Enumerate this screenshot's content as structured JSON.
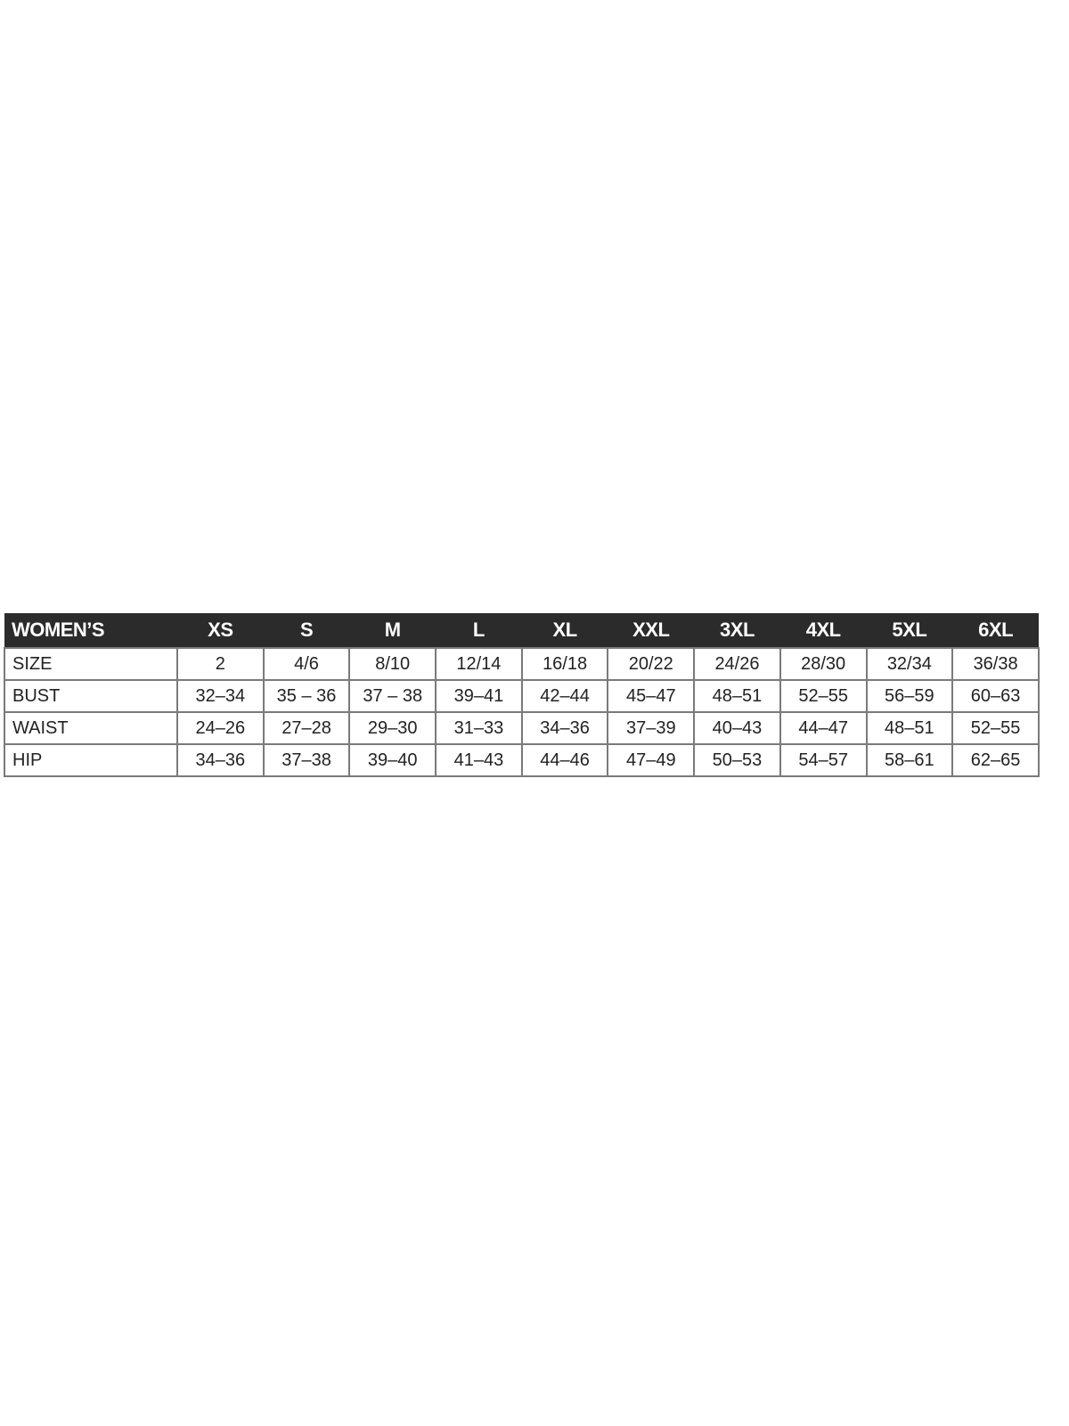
{
  "table": {
    "header": [
      "WOMEN’S",
      "XS",
      "S",
      "M",
      "L",
      "XL",
      "XXL",
      "3XL",
      "4XL",
      "5XL",
      "6XL"
    ],
    "rows": [
      [
        "SIZE",
        "2",
        "4/6",
        "8/10",
        "12/14",
        "16/18",
        "20/22",
        "24/26",
        "28/30",
        "32/34",
        "36/38"
      ],
      [
        "BUST",
        "32–34",
        "35 – 36",
        "37 – 38",
        "39–41",
        "42–44",
        "45–47",
        "48–51",
        "52–55",
        "56–59",
        "60–63"
      ],
      [
        "WAIST",
        "24–26",
        "27–28",
        "29–30",
        "31–33",
        "34–36",
        "37–39",
        "40–43",
        "44–47",
        "48–51",
        "52–55"
      ],
      [
        "HIP",
        "34–36",
        "37–38",
        "39–40",
        "41–43",
        "44–46",
        "47–49",
        "50–53",
        "54–57",
        "58–61",
        "62–65"
      ]
    ]
  },
  "colors": {
    "header_bg": "#2b2b2b",
    "header_text": "#ffffff",
    "border": "#7a7a7a"
  }
}
